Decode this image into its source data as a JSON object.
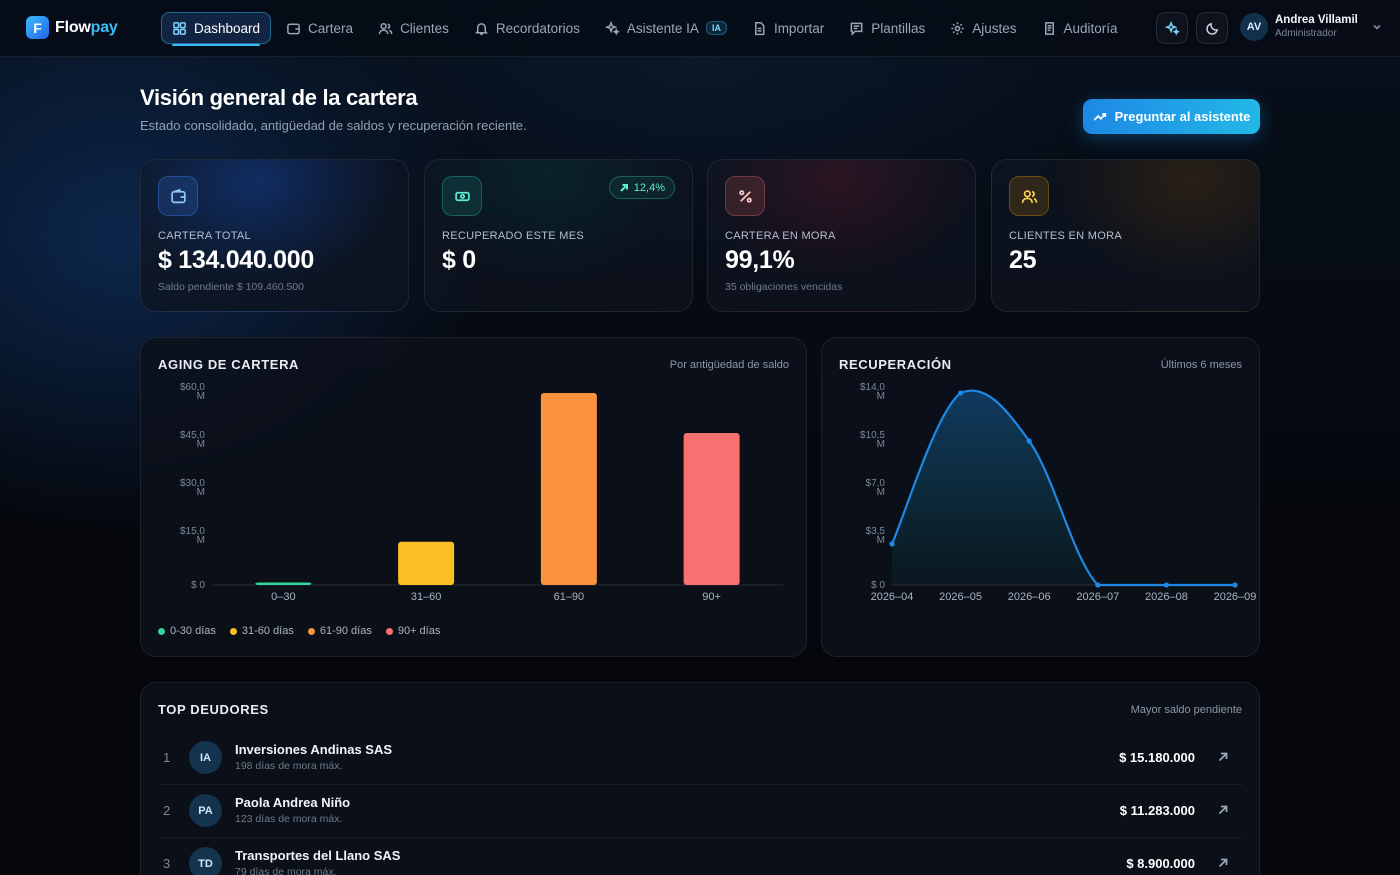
{
  "brand": {
    "logo_letter": "F",
    "name_part1": "Flow",
    "name_part2": "pay"
  },
  "nav": {
    "items": [
      {
        "label": "Dashboard",
        "icon": "grid-icon"
      },
      {
        "label": "Cartera",
        "icon": "wallet-icon"
      },
      {
        "label": "Clientes",
        "icon": "users-icon"
      },
      {
        "label": "Recordatorios",
        "icon": "bell-icon"
      },
      {
        "label": "Asistente IA",
        "icon": "sparkles-icon",
        "badge": "IA"
      },
      {
        "label": "Importar",
        "icon": "file-icon"
      },
      {
        "label": "Plantillas",
        "icon": "message-icon"
      },
      {
        "label": "Ajustes",
        "icon": "gear-icon"
      },
      {
        "label": "Auditoría",
        "icon": "scroll-icon"
      }
    ],
    "active_index": 0
  },
  "user": {
    "initials": "AV",
    "name": "Andrea Villamil",
    "role": "Administrador"
  },
  "header": {
    "title": "Visión general de la cartera",
    "subtitle": "Estado consolidado, antigüedad de saldos y recuperación reciente.",
    "ask_button": "Preguntar al asistente"
  },
  "kpis": [
    {
      "label": "CARTERA TOTAL",
      "value": "$ 134.040.000",
      "note": "Saldo pendiente $ 109.460.500",
      "icon": "wallet-icon",
      "accent": "#3b82f6"
    },
    {
      "label": "RECUPERADO ESTE MES",
      "value": "$ 0",
      "note": "",
      "delta": "12,4%",
      "icon": "cash-icon",
      "accent": "#2dd4bf"
    },
    {
      "label": "CARTERA EN MORA",
      "value": "99,1%",
      "note": "35 obligaciones vencidas",
      "icon": "percent-icon",
      "accent": "#f87171"
    },
    {
      "label": "CLIENTES EN MORA",
      "value": "25",
      "note": "",
      "icon": "users-icon",
      "accent": "#f59e0b"
    }
  ],
  "aging": {
    "title": "AGING DE CARTERA",
    "hint": "Por antigüedad de saldo",
    "legend": [
      {
        "label": "0-30 días",
        "color": "#34d399"
      },
      {
        "label": "31-60 días",
        "color": "#fbbf24"
      },
      {
        "label": "61-90 días",
        "color": "#fb923c"
      },
      {
        "label": "90+ días",
        "color": "#f87171"
      }
    ]
  },
  "recovery": {
    "title": "RECUPERACIÓN",
    "hint": "Últimos 6 meses"
  },
  "chart_data": [
    {
      "type": "bar",
      "title": "AGING DE CARTERA",
      "categories": [
        "0–30",
        "31–60",
        "61–90",
        "90+"
      ],
      "values": [
        0.8,
        13.5,
        60.0,
        47.5
      ],
      "unit": "M",
      "colors": [
        "#34d399",
        "#fbbf24",
        "#fb923c",
        "#f87171"
      ],
      "yticks": [
        "$ 0",
        "$15,0 M",
        "$30,0 M",
        "$45,0 M",
        "$60,0 M"
      ],
      "ylim": [
        0,
        60
      ],
      "grid": false
    },
    {
      "type": "area",
      "title": "RECUPERACIÓN",
      "x": [
        "2026–04",
        "2026–05",
        "2026–06",
        "2026–07",
        "2026–08",
        "2026–09"
      ],
      "values": [
        3.0,
        14.0,
        10.5,
        0,
        0,
        0
      ],
      "unit": "M",
      "color": "#1e88e5",
      "yticks": [
        "$ 0",
        "$3,5 M",
        "$7,0 M",
        "$10,5 M",
        "$14,0 M"
      ],
      "ylim": [
        0,
        14
      ],
      "grid": false
    }
  ],
  "debtors": {
    "title": "TOP DEUDORES",
    "hint": "Mayor saldo pendiente",
    "rows": [
      {
        "rank": "1",
        "initials": "IA",
        "name": "Inversiones Andinas SAS",
        "sub": "198 días de mora máx.",
        "amount": "$ 15.180.000"
      },
      {
        "rank": "2",
        "initials": "PA",
        "name": "Paola Andrea Niño",
        "sub": "123 días de mora máx.",
        "amount": "$ 11.283.000"
      },
      {
        "rank": "3",
        "initials": "TD",
        "name": "Transportes del Llano SAS",
        "sub": "79 días de mora máx.",
        "amount": "$ 8.900.000"
      }
    ]
  }
}
